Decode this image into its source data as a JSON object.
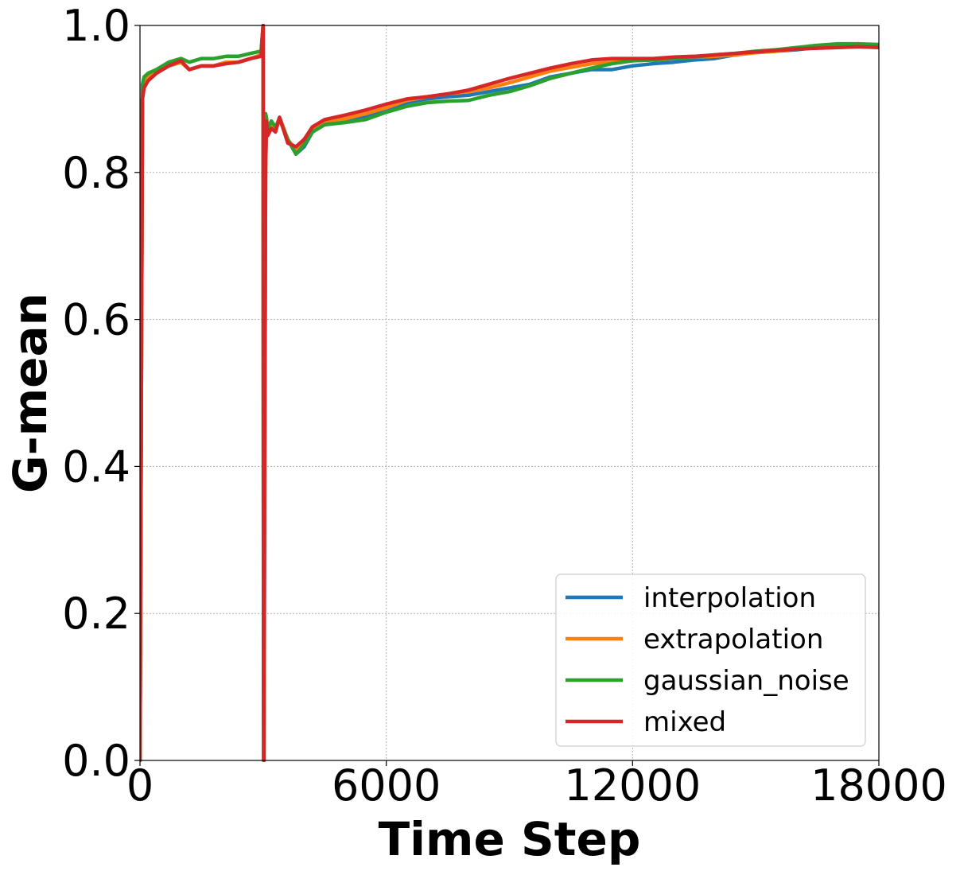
{
  "chart_data": {
    "type": "line",
    "title": "",
    "xlabel": "Time Step",
    "ylabel": "G-mean",
    "xlim": [
      0,
      18000
    ],
    "ylim": [
      0.0,
      1.0
    ],
    "xticks": [
      0,
      6000,
      12000,
      18000
    ],
    "xtick_labels": [
      "0",
      "6000",
      "12000",
      "18000"
    ],
    "yticks": [
      0.0,
      0.2,
      0.4,
      0.6,
      0.8,
      1.0
    ],
    "ytick_labels": [
      "0.0",
      "0.2",
      "0.4",
      "0.6",
      "0.8",
      "1.0"
    ],
    "grid": true,
    "legend_position": "lower-right",
    "series": [
      {
        "name": "interpolation",
        "color": "#1f77b4",
        "x": [
          0,
          60,
          100,
          200,
          400,
          700,
          1000,
          1200,
          1500,
          1800,
          2100,
          2400,
          2700,
          2950,
          3000,
          3010,
          3020,
          3030,
          3060,
          3080,
          3110,
          3200,
          3300,
          3400,
          3600,
          3800,
          4000,
          4200,
          4500,
          5000,
          5500,
          6000,
          6500,
          7000,
          7500,
          8000,
          8500,
          9000,
          9500,
          10000,
          10500,
          11000,
          11500,
          12000,
          12500,
          13000,
          13500,
          14000,
          14500,
          15000,
          15500,
          16000,
          16500,
          17000,
          17500,
          18000
        ],
        "y": [
          0.0,
          0.9,
          0.92,
          0.925,
          0.935,
          0.945,
          0.95,
          0.94,
          0.945,
          0.945,
          0.95,
          0.95,
          0.955,
          0.96,
          1.0,
          0.1,
          0.0,
          0.2,
          0.8,
          0.87,
          0.855,
          0.865,
          0.86,
          0.875,
          0.845,
          0.825,
          0.835,
          0.855,
          0.865,
          0.87,
          0.875,
          0.885,
          0.895,
          0.9,
          0.903,
          0.905,
          0.91,
          0.915,
          0.92,
          0.93,
          0.935,
          0.94,
          0.94,
          0.945,
          0.948,
          0.95,
          0.953,
          0.955,
          0.96,
          0.963,
          0.965,
          0.967,
          0.97,
          0.972,
          0.975,
          0.972
        ]
      },
      {
        "name": "extrapolation",
        "color": "#ff7f0e",
        "x": [
          0,
          60,
          100,
          200,
          400,
          700,
          1000,
          1200,
          1500,
          1800,
          2100,
          2400,
          2700,
          2950,
          3000,
          3010,
          3020,
          3030,
          3060,
          3080,
          3110,
          3200,
          3300,
          3400,
          3600,
          3800,
          4000,
          4200,
          4500,
          5000,
          5500,
          6000,
          6500,
          7000,
          7500,
          8000,
          8500,
          9000,
          9500,
          10000,
          10500,
          11000,
          11500,
          12000,
          12500,
          13000,
          13500,
          14000,
          14500,
          15000,
          15500,
          16000,
          16500,
          17000,
          17500,
          18000
        ],
        "y": [
          0.0,
          0.9,
          0.92,
          0.93,
          0.935,
          0.945,
          0.95,
          0.94,
          0.945,
          0.945,
          0.95,
          0.95,
          0.955,
          0.96,
          1.0,
          0.15,
          0.0,
          0.3,
          0.8,
          0.87,
          0.855,
          0.865,
          0.86,
          0.875,
          0.845,
          0.83,
          0.84,
          0.86,
          0.87,
          0.873,
          0.88,
          0.888,
          0.898,
          0.903,
          0.907,
          0.91,
          0.915,
          0.922,
          0.93,
          0.938,
          0.943,
          0.948,
          0.95,
          0.952,
          0.953,
          0.955,
          0.957,
          0.958,
          0.96,
          0.963,
          0.965,
          0.968,
          0.97,
          0.972,
          0.973,
          0.971
        ]
      },
      {
        "name": "gaussian_noise",
        "color": "#2ca02c",
        "x": [
          0,
          60,
          100,
          200,
          400,
          700,
          1000,
          1200,
          1500,
          1800,
          2100,
          2400,
          2700,
          2950,
          3000,
          3010,
          3020,
          3030,
          3060,
          3080,
          3110,
          3200,
          3300,
          3400,
          3600,
          3800,
          4000,
          4200,
          4500,
          5000,
          5500,
          6000,
          6500,
          7000,
          7500,
          8000,
          8500,
          9000,
          9500,
          10000,
          10500,
          11000,
          11500,
          12000,
          12500,
          13000,
          13500,
          14000,
          14500,
          15000,
          15500,
          16000,
          16500,
          17000,
          17500,
          18000
        ],
        "y": [
          0.0,
          0.92,
          0.93,
          0.935,
          0.94,
          0.95,
          0.955,
          0.95,
          0.955,
          0.955,
          0.958,
          0.958,
          0.962,
          0.965,
          1.0,
          0.2,
          0.0,
          0.46,
          0.88,
          0.875,
          0.86,
          0.87,
          0.862,
          0.872,
          0.845,
          0.825,
          0.838,
          0.855,
          0.865,
          0.868,
          0.872,
          0.882,
          0.89,
          0.895,
          0.897,
          0.898,
          0.905,
          0.91,
          0.918,
          0.928,
          0.935,
          0.942,
          0.948,
          0.952,
          0.953,
          0.955,
          0.957,
          0.96,
          0.962,
          0.965,
          0.967,
          0.97,
          0.973,
          0.975,
          0.975,
          0.974
        ]
      },
      {
        "name": "mixed",
        "color": "#d62728",
        "x": [
          0,
          60,
          100,
          200,
          400,
          700,
          1000,
          1200,
          1500,
          1800,
          2100,
          2400,
          2700,
          2950,
          3000,
          3010,
          3020,
          3030,
          3060,
          3080,
          3110,
          3200,
          3300,
          3400,
          3600,
          3800,
          4000,
          4200,
          4500,
          5000,
          5500,
          6000,
          6500,
          7000,
          7500,
          8000,
          8500,
          9000,
          9500,
          10000,
          10500,
          11000,
          11500,
          12000,
          12500,
          13000,
          13500,
          14000,
          14500,
          15000,
          15500,
          16000,
          16500,
          17000,
          17500,
          18000
        ],
        "y": [
          0.0,
          0.9,
          0.915,
          0.925,
          0.935,
          0.945,
          0.952,
          0.94,
          0.945,
          0.945,
          0.948,
          0.95,
          0.955,
          0.958,
          1.0,
          0.0,
          0.0,
          0.3,
          0.81,
          0.87,
          0.85,
          0.86,
          0.855,
          0.875,
          0.84,
          0.835,
          0.845,
          0.862,
          0.872,
          0.878,
          0.885,
          0.893,
          0.9,
          0.903,
          0.907,
          0.912,
          0.92,
          0.928,
          0.935,
          0.942,
          0.948,
          0.953,
          0.955,
          0.955,
          0.955,
          0.957,
          0.958,
          0.96,
          0.962,
          0.964,
          0.966,
          0.968,
          0.969,
          0.97,
          0.971,
          0.97
        ]
      }
    ]
  }
}
